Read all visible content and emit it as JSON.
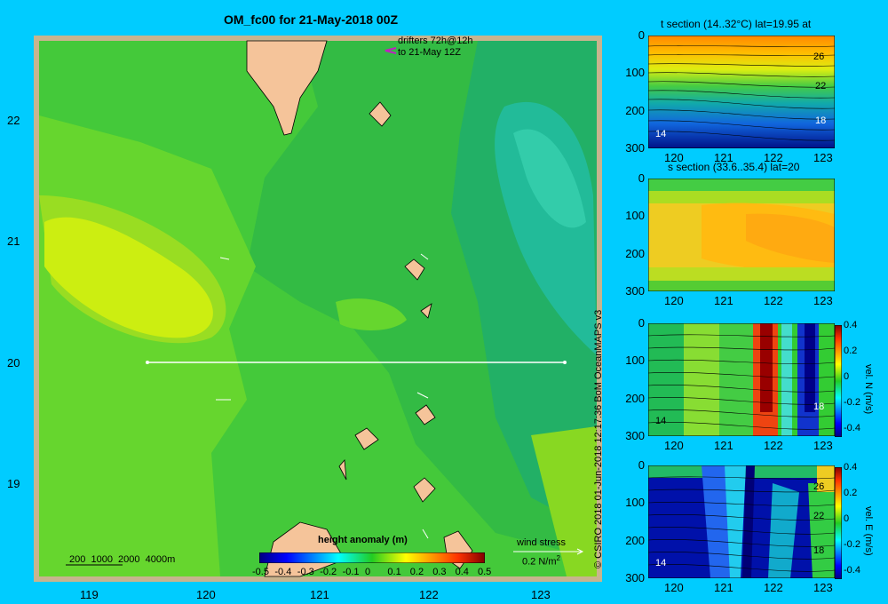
{
  "title": "OM_fc00 for 21-May-2018 00Z",
  "credit": "© CSIRO 2018   01-Jun-2018 12:17:36 BoM OceanMAPS v3",
  "map": {
    "lat_ticks": [
      "22",
      "21",
      "20",
      "19"
    ],
    "lon_ticks": [
      "119",
      "120",
      "121",
      "122",
      "123"
    ],
    "drifters_label_line1": "drifters 72h@12h",
    "drifters_label_line2": "to 21-May 12Z",
    "depth_legend": "200  1000  2000  4000m",
    "wind_stress_label": "wind stress",
    "wind_stress_unit": "0.2 N/m",
    "wind_stress_unit_sup": "2",
    "colorbar": {
      "title": "height anomaly (m)",
      "ticks": [
        "-0.5",
        "-0.4",
        "-0.3",
        "-0.2",
        "-0.1",
        "0",
        "0.1",
        "0.2",
        "0.3",
        "0.4",
        "0.5"
      ]
    }
  },
  "panels": [
    {
      "id": "t-section",
      "title": "t section (14..32°C) lat=19.95 at",
      "depth_ticks": [
        "0",
        "100",
        "200",
        "300"
      ],
      "lon_ticks": [
        "120",
        "121",
        "122",
        "123"
      ],
      "contour_labels": [
        "26",
        "22",
        "18",
        "14"
      ]
    },
    {
      "id": "s-section",
      "title": "s section (33.6..35.4) lat=20",
      "depth_ticks": [
        "0",
        "100",
        "200",
        "300"
      ],
      "lon_ticks": [
        "120",
        "121",
        "122",
        "123"
      ]
    },
    {
      "id": "v-section",
      "depth_ticks": [
        "0",
        "100",
        "200",
        "300"
      ],
      "lon_ticks": [
        "120",
        "121",
        "122",
        "123"
      ],
      "contour_labels": [
        "14",
        "18"
      ],
      "colorbar_label": "vel. N (m/s)",
      "colorbar_ticks": [
        "0.4",
        "0.2",
        "0",
        "-0.2",
        "-0.4"
      ]
    },
    {
      "id": "u-section",
      "depth_ticks": [
        "0",
        "100",
        "200",
        "300"
      ],
      "lon_ticks": [
        "120",
        "121",
        "122",
        "123"
      ],
      "contour_labels": [
        "26",
        "22",
        "18",
        "14"
      ],
      "colorbar_label": "vel. E (m/s)",
      "colorbar_ticks": [
        "0.4",
        "0.2",
        "0",
        "-0.2",
        "-0.4"
      ]
    }
  ]
}
